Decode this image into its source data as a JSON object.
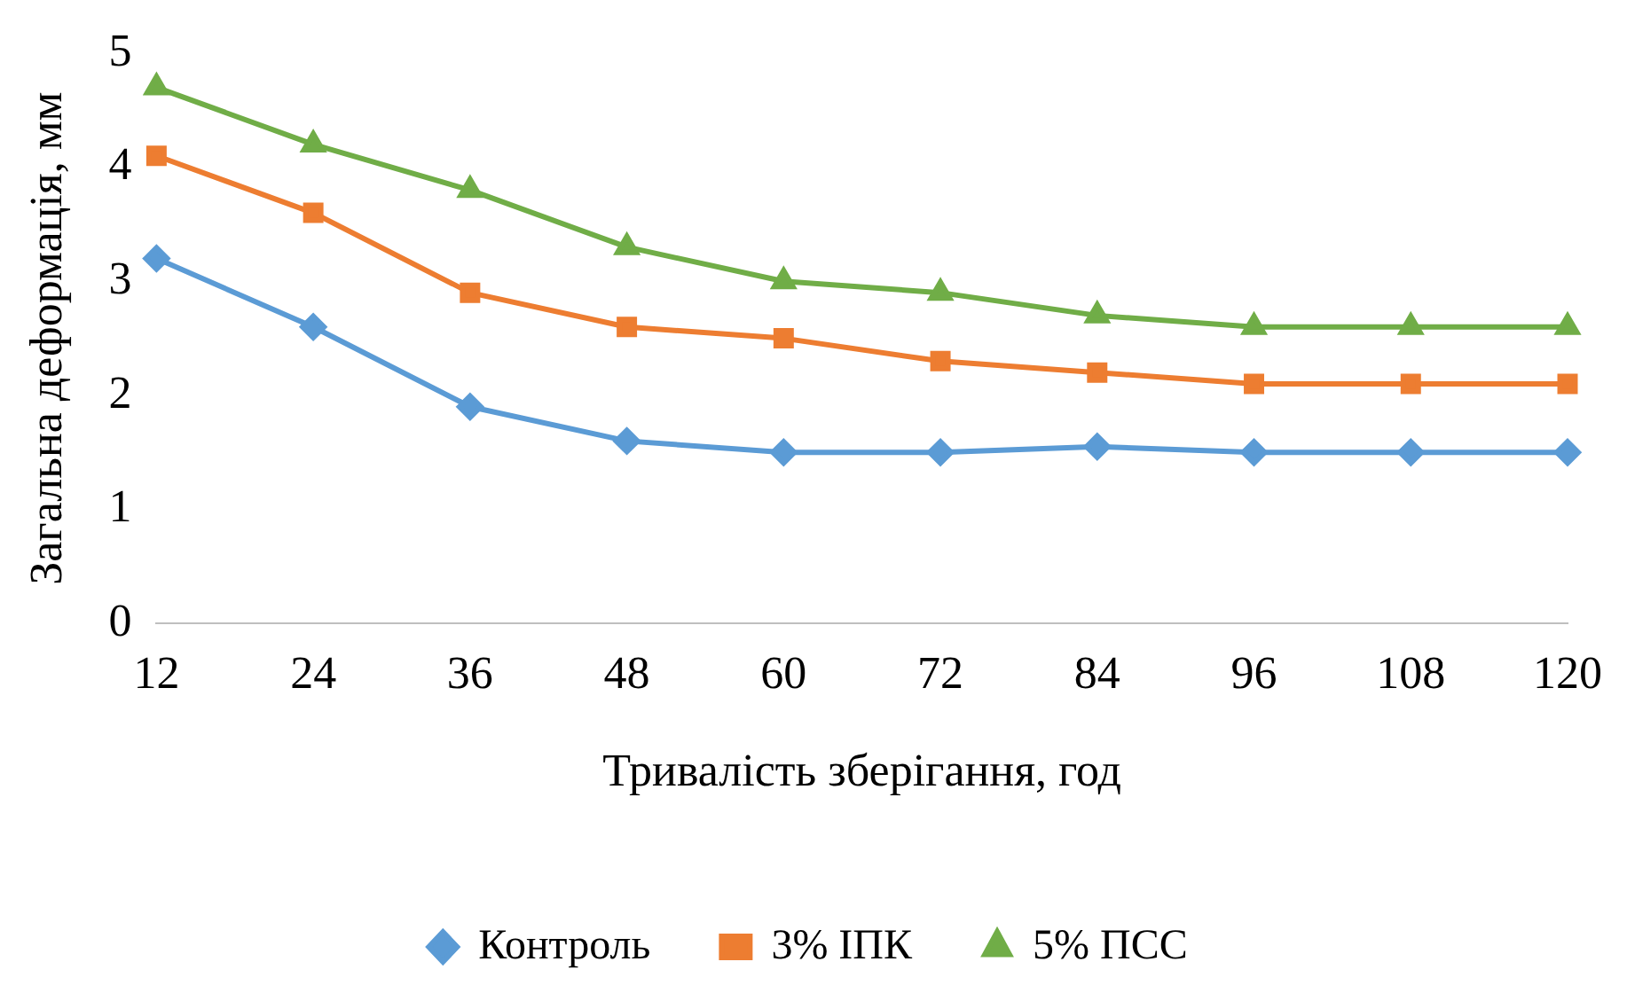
{
  "chart_data": {
    "type": "line",
    "xlabel": "Тривалість зберігання, год",
    "ylabel": "Загальна деформація, мм",
    "categories": [
      "12",
      "24",
      "36",
      "48",
      "60",
      "72",
      "84",
      "96",
      "108",
      "120"
    ],
    "ylim": [
      0,
      5
    ],
    "yticks": [
      0,
      1,
      2,
      3,
      4,
      5
    ],
    "grid": false,
    "legend": "bottom",
    "series": [
      {
        "name": "Контроль",
        "color": "#5b9bd5",
        "marker": "diamond",
        "values": [
          3.2,
          2.6,
          1.9,
          1.6,
          1.5,
          1.5,
          1.55,
          1.5,
          1.5,
          1.5
        ]
      },
      {
        "name": "3% ІПК",
        "color": "#ed7d31",
        "marker": "square",
        "values": [
          4.1,
          3.6,
          2.9,
          2.6,
          2.5,
          2.3,
          2.2,
          2.1,
          2.1,
          2.1
        ]
      },
      {
        "name": "5% ПСС",
        "color": "#70ad47",
        "marker": "triangle",
        "values": [
          4.7,
          4.2,
          3.8,
          3.3,
          3.0,
          2.9,
          2.7,
          2.6,
          2.6,
          2.6
        ]
      }
    ]
  }
}
